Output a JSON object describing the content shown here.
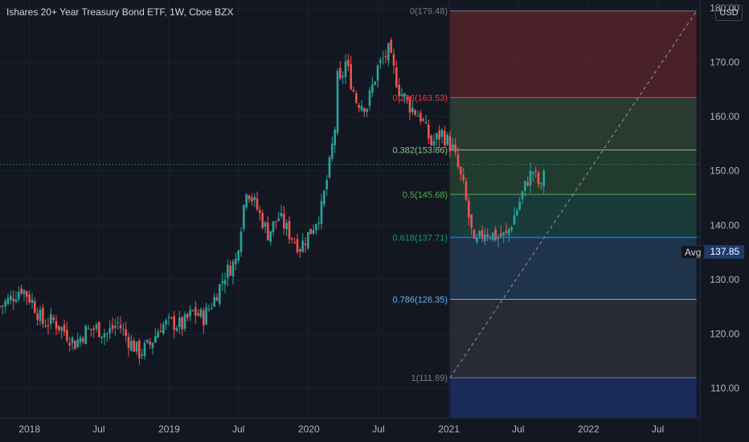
{
  "header": {
    "title": "Ishares 20+ Year Treasury Bond ETF, 1W, Cboe BZX"
  },
  "currency_button": "USD",
  "avg_tag": {
    "label": "Avg",
    "value": "137.85"
  },
  "colors": {
    "up": "#26a69a",
    "down": "#ef5350",
    "background": "#131722"
  },
  "chart_data": {
    "type": "candlestick",
    "ylim": [
      104.5,
      181.5
    ],
    "y_ticks": [
      "180.00",
      "170.00",
      "160.00",
      "150.00",
      "140.00",
      "130.00",
      "120.00",
      "110.00"
    ],
    "x_ticks": [
      "2018",
      "Jul",
      "2019",
      "Jul",
      "2020",
      "Jul",
      "2021",
      "Jul",
      "2022",
      "Jul"
    ],
    "x_tick_dates": [
      "2018-01-01",
      "2018-07-01",
      "2019-01-01",
      "2019-07-01",
      "2020-01-01",
      "2020-07-01",
      "2021-01-01",
      "2021-07-01",
      "2022-01-01",
      "2022-07-01"
    ],
    "x_range": [
      "2017-10-16",
      "2022-10-17"
    ],
    "current_price": 151.2,
    "avg_price": 137.85,
    "fib_levels": [
      {
        "ratio": 0,
        "price": 179.48,
        "label": "0(179.48)",
        "color": "#787b86",
        "zone": "#7a2a30"
      },
      {
        "ratio": 0.236,
        "price": 163.53,
        "label": "0.236(163.53)",
        "color": "#f23645",
        "zone": "#3d5a3e"
      },
      {
        "ratio": 0.382,
        "price": 153.86,
        "label": "0.382(153.86)",
        "color": "#81c784",
        "zone": "#2f5a3a"
      },
      {
        "ratio": 0.5,
        "price": 145.68,
        "label": "0.5(145.68)",
        "color": "#4caf50",
        "zone": "#1e5a4f"
      },
      {
        "ratio": 0.618,
        "price": 137.71,
        "label": "0.618(137.71)",
        "color": "#089981",
        "zone": "#2a4a6e"
      },
      {
        "ratio": 0.786,
        "price": 126.35,
        "label": "0.786(126.35)",
        "color": "#64b5f6",
        "zone": "#3a3d47"
      },
      {
        "ratio": 1,
        "price": 111.89,
        "label": "1(111.89)",
        "color": "#787b86",
        "zone": "#1f3a8a"
      }
    ],
    "fib_start": "2021-01-04",
    "fib_end": "2022-10-10",
    "series_dates": [
      "2017-10-16",
      "2017-11-13",
      "2017-12-11",
      "2018-01-08",
      "2018-02-05",
      "2018-03-05",
      "2018-04-02",
      "2018-04-30",
      "2018-05-28",
      "2018-06-25",
      "2018-07-23",
      "2018-08-20",
      "2018-09-17",
      "2018-10-15",
      "2018-11-12",
      "2018-12-10",
      "2019-01-07",
      "2019-02-04",
      "2019-03-04",
      "2019-04-01",
      "2019-04-29",
      "2019-05-27",
      "2019-06-24",
      "2019-07-22",
      "2019-08-19",
      "2019-09-16",
      "2019-10-14",
      "2019-11-11",
      "2019-12-09",
      "2020-01-06",
      "2020-02-03",
      "2020-02-24",
      "2020-03-09",
      "2020-03-16",
      "2020-03-23",
      "2020-04-06",
      "2020-05-04",
      "2020-06-01",
      "2020-06-29",
      "2020-07-27",
      "2020-08-24",
      "2020-09-21",
      "2020-10-19",
      "2020-11-16",
      "2020-12-14",
      "2021-01-11",
      "2021-02-08",
      "2021-03-08",
      "2021-04-05",
      "2021-05-03",
      "2021-05-31",
      "2021-06-28",
      "2021-07-26",
      "2021-08-09",
      "2021-08-30",
      "2021-09-06"
    ],
    "series_close": [
      125,
      126.5,
      128.5,
      126,
      122,
      122.3,
      120.5,
      118.2,
      120.5,
      121,
      120,
      122,
      118.8,
      116.5,
      118,
      121.5,
      122,
      121.5,
      124,
      123,
      126.5,
      131,
      133.5,
      147,
      143,
      138.5,
      141.5,
      138.5,
      136,
      139,
      143,
      151,
      158,
      167,
      166,
      170,
      163,
      162,
      169,
      172,
      165,
      162,
      160,
      155,
      157,
      154,
      147,
      136,
      139,
      138,
      138,
      143,
      148.5,
      150,
      146.5,
      150.5
    ]
  }
}
